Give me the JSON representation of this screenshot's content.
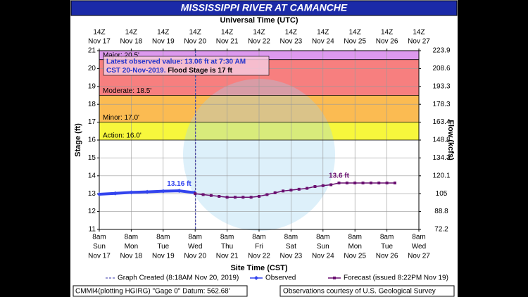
{
  "chart_data": {
    "type": "hydrograph",
    "title": "MISSISSIPPI RIVER AT CAMANCHE",
    "top_axis_title": "Universal Time (UTC)",
    "x_axis_title": "Site Time (CST)",
    "y_axis_title": "Stage (ft)",
    "y2_axis_title": "Flow (kcfs)",
    "xlim": [
      "2019-11-17T08:00",
      "2019-11-27T08:00"
    ],
    "xticks": [
      "2019-11-17T08:00",
      "2019-11-18T08:00",
      "2019-11-19T08:00",
      "2019-11-20T08:00",
      "2019-11-21T08:00",
      "2019-11-22T08:00",
      "2019-11-23T08:00",
      "2019-11-24T08:00",
      "2019-11-25T08:00",
      "2019-11-26T08:00",
      "2019-11-27T08:00"
    ],
    "xtick_labels": [
      [
        "8am",
        "Sun",
        "Nov 17"
      ],
      [
        "8am",
        "Mon",
        "Nov 18"
      ],
      [
        "8am",
        "Tue",
        "Nov 19"
      ],
      [
        "8am",
        "Wed",
        "Nov 20"
      ],
      [
        "8am",
        "Thu",
        "Nov 21"
      ],
      [
        "8am",
        "Fri",
        "Nov 22"
      ],
      [
        "8am",
        "Sat",
        "Nov 23"
      ],
      [
        "8am",
        "Sun",
        "Nov 24"
      ],
      [
        "8am",
        "Mon",
        "Nov 25"
      ],
      [
        "8am",
        "Tue",
        "Nov 26"
      ],
      [
        "8am",
        "Wed",
        "Nov 27"
      ]
    ],
    "x2tick_labels": [
      [
        "14Z",
        "Nov 17"
      ],
      [
        "14Z",
        "Nov 18"
      ],
      [
        "14Z",
        "Nov 19"
      ],
      [
        "14Z",
        "Nov 20"
      ],
      [
        "14Z",
        "Nov 21"
      ],
      [
        "14Z",
        "Nov 22"
      ],
      [
        "14Z",
        "Nov 23"
      ],
      [
        "14Z",
        "Nov 24"
      ],
      [
        "14Z",
        "Nov 25"
      ],
      [
        "14Z",
        "Nov 26"
      ],
      [
        "14Z",
        "Nov 27"
      ]
    ],
    "ylim": [
      11,
      21
    ],
    "yticks": [
      11,
      12,
      13,
      14,
      15,
      16,
      17,
      18,
      19,
      20,
      21
    ],
    "y2ticks": [
      72.2,
      88.8,
      105.0,
      120.1,
      134.3,
      148.8,
      163.4,
      178.3,
      193.3,
      208.6,
      223.9
    ],
    "grid": true,
    "bands": [
      {
        "label": "Action: 16.0'",
        "value": 16.0,
        "color": "#f7f73c"
      },
      {
        "label": "Minor: 17.0'",
        "value": 17.0,
        "color": "#fbbb52"
      },
      {
        "label": "Moderate: 18.5'",
        "value": 18.5,
        "color": "#f77f7f"
      },
      {
        "label": "Major: 20.5'",
        "value": 20.5,
        "color": "#dd99ee"
      }
    ],
    "series": [
      {
        "name": "Observed",
        "color": "#3344ee",
        "x": [
          "2019-11-17T08:00",
          "2019-11-17T20:00",
          "2019-11-18T08:00",
          "2019-11-18T20:00",
          "2019-11-19T08:00",
          "2019-11-19T20:00",
          "2019-11-20T07:30"
        ],
        "values": [
          12.97,
          13.02,
          13.07,
          13.1,
          13.14,
          13.16,
          13.06
        ]
      },
      {
        "name": "Forecast (issued 8:22PM Nov 19)",
        "color": "#6a1070",
        "x": [
          "2019-11-20T08:00",
          "2019-11-20T14:00",
          "2019-11-20T20:00",
          "2019-11-21T02:00",
          "2019-11-21T08:00",
          "2019-11-21T14:00",
          "2019-11-21T20:00",
          "2019-11-22T02:00",
          "2019-11-22T08:00",
          "2019-11-22T14:00",
          "2019-11-22T20:00",
          "2019-11-23T02:00",
          "2019-11-23T08:00",
          "2019-11-23T14:00",
          "2019-11-23T20:00",
          "2019-11-24T02:00",
          "2019-11-24T08:00",
          "2019-11-24T14:00",
          "2019-11-24T20:00",
          "2019-11-25T02:00",
          "2019-11-25T08:00",
          "2019-11-25T14:00",
          "2019-11-25T20:00",
          "2019-11-26T02:00",
          "2019-11-26T08:00",
          "2019-11-26T14:00"
        ],
        "values": [
          13.0,
          12.95,
          12.9,
          12.85,
          12.8,
          12.8,
          12.8,
          12.8,
          12.85,
          12.95,
          13.05,
          13.15,
          13.2,
          13.25,
          13.3,
          13.4,
          13.45,
          13.5,
          13.6,
          13.6,
          13.6,
          13.6,
          13.6,
          13.6,
          13.6,
          13.6
        ]
      }
    ],
    "point_labels": [
      {
        "text": "13.16 ft",
        "x": "2019-11-19T20:00",
        "y": 13.16,
        "color": "#3344ee"
      },
      {
        "text": "13.6 ft",
        "x": "2019-11-24T20:00",
        "y": 13.6,
        "color": "#6a1070"
      }
    ],
    "graph_created": "2019-11-20T08:18",
    "graph_created_label": "Graph Created (8:18AM Nov 20, 2019)",
    "latest_note_1": "Latest observed value: 13.06 ft at 7:30 AM",
    "latest_note_2a": "CST 20-Nov-2019.",
    "latest_note_2b": "Flood Stage is 17 ft",
    "footer_left": "CMMI4(plotting HGIRG) \"Gage 0\" Datum: 562.68'",
    "footer_right": "Observations courtesy of U.S. Geological Survey"
  }
}
